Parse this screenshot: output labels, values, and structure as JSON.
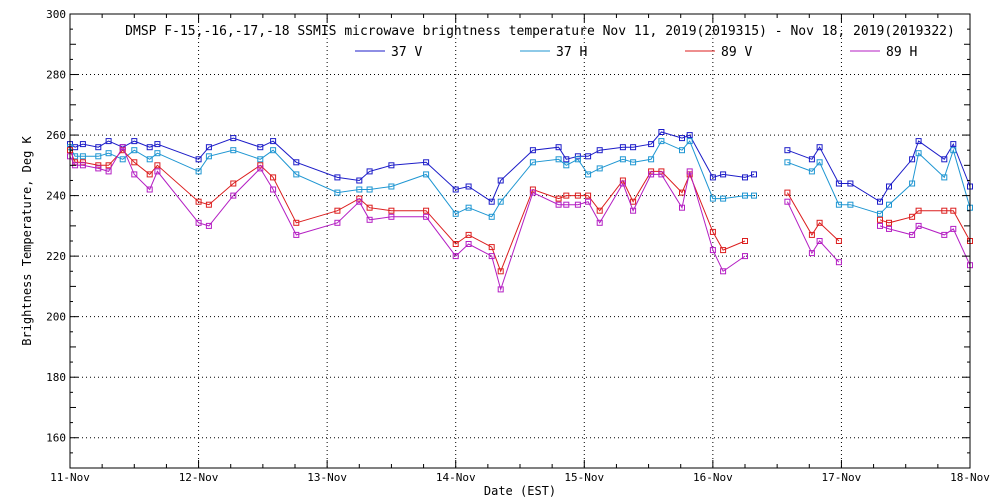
{
  "chart_data": {
    "type": "line",
    "title": "DMSP F-15,-16,-17,-18 SSMIS microwave brightness temperature Nov 11, 2019(2019315) - Nov 18, 2019(2019322)",
    "xlabel": "Date (EST)",
    "ylabel": "Brightness Temperature, Deg K",
    "ylim": [
      150,
      300
    ],
    "xlim": [
      0,
      7
    ],
    "x_ticks": [
      0,
      1,
      2,
      3,
      4,
      5,
      6,
      7
    ],
    "x_tick_labels": [
      "11-Nov",
      "12-Nov",
      "13-Nov",
      "14-Nov",
      "15-Nov",
      "16-Nov",
      "17-Nov",
      "18-Nov"
    ],
    "y_ticks": [
      160,
      180,
      200,
      220,
      240,
      260,
      280,
      300
    ],
    "grid": true,
    "legend_placement": "top-center",
    "series": [
      {
        "name": "37 V",
        "color": "#1c1cc8",
        "segments": [
          [
            [
              0.0,
              257
            ],
            [
              0.04,
              256
            ],
            [
              0.1,
              257
            ],
            [
              0.22,
              256
            ],
            [
              0.3,
              258
            ],
            [
              0.41,
              256
            ],
            [
              0.5,
              258
            ],
            [
              0.62,
              256
            ],
            [
              0.68,
              257
            ],
            [
              1.0,
              252
            ],
            [
              1.08,
              256
            ],
            [
              1.27,
              259
            ],
            [
              1.48,
              256
            ],
            [
              1.58,
              258
            ],
            [
              1.76,
              251
            ],
            [
              2.08,
              246
            ],
            [
              2.25,
              245
            ],
            [
              2.33,
              248
            ],
            [
              2.5,
              250
            ],
            [
              2.77,
              251
            ],
            [
              3.0,
              242
            ],
            [
              3.1,
              243
            ],
            [
              3.28,
              238
            ],
            [
              3.35,
              245
            ],
            [
              3.6,
              255
            ],
            [
              3.8,
              256
            ],
            [
              3.86,
              252
            ],
            [
              3.95,
              253
            ],
            [
              4.03,
              253
            ],
            [
              4.12,
              255
            ],
            [
              4.3,
              256
            ],
            [
              4.38,
              256
            ],
            [
              4.52,
              257
            ],
            [
              4.6,
              261
            ],
            [
              4.76,
              259
            ],
            [
              4.82,
              260
            ],
            [
              5.0,
              246
            ],
            [
              5.08,
              247
            ],
            [
              5.25,
              246
            ],
            [
              5.32,
              247
            ]
          ],
          [
            [
              5.58,
              255
            ],
            [
              5.77,
              252
            ],
            [
              5.83,
              256
            ],
            [
              5.98,
              244
            ],
            [
              6.07,
              244
            ],
            [
              6.3,
              238
            ],
            [
              6.37,
              243
            ],
            [
              6.55,
              252
            ],
            [
              6.6,
              258
            ],
            [
              6.8,
              252
            ],
            [
              6.87,
              257
            ],
            [
              7.0,
              243
            ]
          ]
        ]
      },
      {
        "name": "37 H",
        "color": "#1e96d2",
        "segments": [
          [
            [
              0.0,
              256
            ],
            [
              0.04,
              253
            ],
            [
              0.1,
              253
            ],
            [
              0.22,
              253
            ],
            [
              0.3,
              254
            ],
            [
              0.41,
              252
            ],
            [
              0.5,
              255
            ],
            [
              0.62,
              252
            ],
            [
              0.68,
              254
            ],
            [
              1.0,
              248
            ],
            [
              1.08,
              253
            ],
            [
              1.27,
              255
            ],
            [
              1.48,
              252
            ],
            [
              1.58,
              255
            ],
            [
              1.76,
              247
            ],
            [
              2.08,
              241
            ],
            [
              2.25,
              242
            ],
            [
              2.33,
              242
            ],
            [
              2.5,
              243
            ],
            [
              2.77,
              247
            ],
            [
              3.0,
              234
            ],
            [
              3.1,
              236
            ],
            [
              3.28,
              233
            ],
            [
              3.35,
              238
            ],
            [
              3.6,
              251
            ],
            [
              3.8,
              252
            ],
            [
              3.86,
              250
            ],
            [
              3.95,
              252
            ],
            [
              4.03,
              247
            ],
            [
              4.12,
              249
            ],
            [
              4.3,
              252
            ],
            [
              4.38,
              251
            ],
            [
              4.52,
              252
            ],
            [
              4.6,
              258
            ],
            [
              4.76,
              255
            ],
            [
              4.82,
              258
            ],
            [
              5.0,
              239
            ],
            [
              5.08,
              239
            ],
            [
              5.25,
              240
            ],
            [
              5.32,
              240
            ]
          ],
          [
            [
              5.58,
              251
            ],
            [
              5.77,
              248
            ],
            [
              5.83,
              251
            ],
            [
              5.98,
              237
            ],
            [
              6.07,
              237
            ],
            [
              6.3,
              234
            ],
            [
              6.37,
              237
            ],
            [
              6.55,
              244
            ],
            [
              6.6,
              254
            ],
            [
              6.8,
              246
            ],
            [
              6.87,
              255
            ],
            [
              7.0,
              236
            ]
          ]
        ]
      },
      {
        "name": "89 V",
        "color": "#dc1e1e",
        "segments": [
          [
            [
              0.0,
              255
            ],
            [
              0.04,
              251
            ],
            [
              0.1,
              251
            ],
            [
              0.22,
              250
            ],
            [
              0.3,
              250
            ],
            [
              0.41,
              255
            ],
            [
              0.5,
              251
            ],
            [
              0.62,
              247
            ],
            [
              0.68,
              250
            ],
            [
              1.0,
              238
            ],
            [
              1.08,
              237
            ],
            [
              1.27,
              244
            ],
            [
              1.48,
              250
            ],
            [
              1.58,
              246
            ],
            [
              1.76,
              231
            ],
            [
              2.08,
              235
            ],
            [
              2.25,
              239
            ],
            [
              2.33,
              236
            ],
            [
              2.5,
              235
            ],
            [
              2.77,
              235
            ],
            [
              3.0,
              224
            ],
            [
              3.1,
              227
            ],
            [
              3.28,
              223
            ],
            [
              3.35,
              215
            ],
            [
              3.6,
              242
            ],
            [
              3.8,
              239
            ],
            [
              3.86,
              240
            ],
            [
              3.95,
              240
            ],
            [
              4.03,
              240
            ],
            [
              4.12,
              235
            ],
            [
              4.3,
              245
            ],
            [
              4.38,
              238
            ],
            [
              4.52,
              248
            ],
            [
              4.6,
              248
            ],
            [
              4.76,
              241
            ],
            [
              4.82,
              247
            ],
            [
              5.0,
              228
            ],
            [
              5.08,
              222
            ],
            [
              5.25,
              225
            ]
          ],
          [
            [
              5.58,
              241
            ],
            [
              5.77,
              227
            ],
            [
              5.83,
              231
            ],
            [
              5.98,
              225
            ]
          ],
          [
            [
              6.3,
              232
            ],
            [
              6.37,
              231
            ],
            [
              6.55,
              233
            ],
            [
              6.6,
              235
            ],
            [
              6.8,
              235
            ],
            [
              6.87,
              235
            ],
            [
              7.0,
              225
            ]
          ]
        ]
      },
      {
        "name": "89 H",
        "color": "#b41ec3",
        "segments": [
          [
            [
              0.0,
              253
            ],
            [
              0.04,
              250
            ],
            [
              0.1,
              250
            ],
            [
              0.22,
              249
            ],
            [
              0.3,
              248
            ],
            [
              0.41,
              256
            ],
            [
              0.5,
              247
            ],
            [
              0.62,
              242
            ],
            [
              0.68,
              248
            ],
            [
              1.0,
              231
            ],
            [
              1.08,
              230
            ],
            [
              1.27,
              240
            ],
            [
              1.48,
              249
            ],
            [
              1.58,
              242
            ],
            [
              1.76,
              227
            ],
            [
              2.08,
              231
            ],
            [
              2.25,
              238
            ],
            [
              2.33,
              232
            ],
            [
              2.5,
              233
            ],
            [
              2.77,
              233
            ],
            [
              3.0,
              220
            ],
            [
              3.1,
              224
            ],
            [
              3.28,
              220
            ],
            [
              3.35,
              209
            ],
            [
              3.6,
              241
            ],
            [
              3.8,
              237
            ],
            [
              3.86,
              237
            ],
            [
              3.95,
              237
            ],
            [
              4.03,
              238
            ],
            [
              4.12,
              231
            ],
            [
              4.3,
              244
            ],
            [
              4.38,
              235
            ],
            [
              4.52,
              247
            ],
            [
              4.6,
              247
            ],
            [
              4.76,
              236
            ],
            [
              4.82,
              248
            ],
            [
              5.0,
              222
            ],
            [
              5.08,
              215
            ],
            [
              5.25,
              220
            ]
          ],
          [
            [
              5.58,
              238
            ],
            [
              5.77,
              221
            ],
            [
              5.83,
              225
            ],
            [
              5.98,
              218
            ]
          ],
          [
            [
              6.3,
              230
            ],
            [
              6.37,
              229
            ],
            [
              6.55,
              227
            ],
            [
              6.6,
              230
            ],
            [
              6.8,
              227
            ],
            [
              6.87,
              229
            ],
            [
              7.0,
              217
            ]
          ]
        ]
      }
    ]
  }
}
